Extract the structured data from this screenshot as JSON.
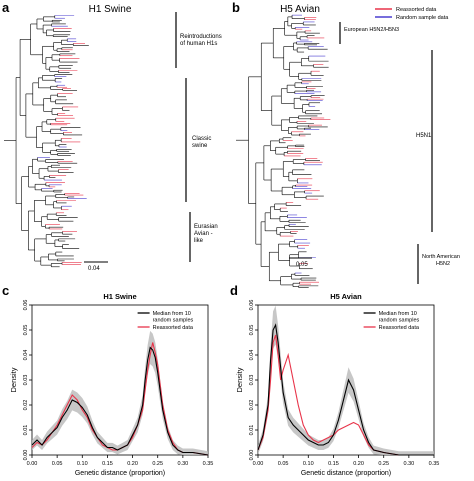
{
  "panels": {
    "a": {
      "letter": "a",
      "title": "H1 Swine",
      "clades": [
        {
          "label": "Reintroductions\nof human H1s"
        },
        {
          "label": "Classic\nswine"
        },
        {
          "label": "Eurasian\nAvian -\nlike"
        }
      ],
      "scale": "0.04"
    },
    "b": {
      "letter": "b",
      "title": "H5 Avian",
      "legend": [
        {
          "label": "Reassorted data",
          "color": "#e8344a"
        },
        {
          "label": "Random sample data",
          "color": "#4a3fd0"
        }
      ],
      "clades": [
        {
          "label": "European H5N2/H5N3"
        },
        {
          "label": "H5N1"
        },
        {
          "label": "North American\nH5N2"
        }
      ],
      "scale": "0.05"
    }
  },
  "chart_data": [
    {
      "letter": "c",
      "type": "line",
      "title": "H1 Swine",
      "xlabel": "Genetic distance (proportion)",
      "ylabel": "Density",
      "xlim": [
        0,
        0.35
      ],
      "ylim": [
        0,
        0.06
      ],
      "xticks": [
        "0.00",
        "0.05",
        "0.10",
        "0.15",
        "0.20",
        "0.25",
        "0.30",
        "0.35"
      ],
      "yticks": [
        "0.00",
        "0.01",
        "0.02",
        "0.03",
        "0.04",
        "0.05",
        "0.06"
      ],
      "legend": [
        {
          "label": "Median from 10\nrandom samples",
          "color": "#000000"
        },
        {
          "label": "Reassorted data",
          "color": "#e8344a"
        }
      ],
      "series": [
        {
          "name": "Median from 10 random samples",
          "color": "#000000",
          "x": [
            0.0,
            0.01,
            0.02,
            0.03,
            0.04,
            0.05,
            0.06,
            0.07,
            0.08,
            0.09,
            0.1,
            0.11,
            0.12,
            0.13,
            0.14,
            0.15,
            0.16,
            0.17,
            0.18,
            0.19,
            0.2,
            0.21,
            0.22,
            0.225,
            0.23,
            0.235,
            0.24,
            0.245,
            0.25,
            0.26,
            0.27,
            0.28,
            0.29,
            0.3,
            0.32,
            0.35
          ],
          "y": [
            0.004,
            0.006,
            0.004,
            0.007,
            0.009,
            0.011,
            0.015,
            0.018,
            0.022,
            0.021,
            0.019,
            0.016,
            0.011,
            0.007,
            0.005,
            0.003,
            0.003,
            0.002,
            0.003,
            0.004,
            0.008,
            0.012,
            0.02,
            0.03,
            0.038,
            0.043,
            0.042,
            0.039,
            0.033,
            0.018,
            0.009,
            0.004,
            0.002,
            0.001,
            0.001,
            0.0
          ]
        },
        {
          "name": "Reassorted data",
          "color": "#e8344a",
          "x": [
            0.0,
            0.01,
            0.02,
            0.03,
            0.04,
            0.05,
            0.06,
            0.07,
            0.08,
            0.09,
            0.1,
            0.11,
            0.12,
            0.13,
            0.14,
            0.15,
            0.16,
            0.17,
            0.18,
            0.19,
            0.2,
            0.21,
            0.22,
            0.225,
            0.23,
            0.235,
            0.24,
            0.245,
            0.25,
            0.26,
            0.27,
            0.28,
            0.29,
            0.3,
            0.32,
            0.35
          ],
          "y": [
            0.003,
            0.005,
            0.004,
            0.006,
            0.009,
            0.012,
            0.016,
            0.02,
            0.024,
            0.022,
            0.018,
            0.015,
            0.01,
            0.007,
            0.004,
            0.003,
            0.002,
            0.002,
            0.003,
            0.004,
            0.007,
            0.012,
            0.018,
            0.026,
            0.034,
            0.04,
            0.045,
            0.041,
            0.036,
            0.02,
            0.01,
            0.005,
            0.002,
            0.001,
            0.001,
            0.0
          ]
        }
      ]
    },
    {
      "letter": "d",
      "type": "line",
      "title": "H5 Avian",
      "xlabel": "Genetic distance (proportion)",
      "ylabel": "Density",
      "xlim": [
        0,
        0.35
      ],
      "ylim": [
        0,
        0.06
      ],
      "xticks": [
        "0.00",
        "0.05",
        "0.10",
        "0.15",
        "0.20",
        "0.25",
        "0.30",
        "0.35"
      ],
      "yticks": [
        "0.00",
        "0.01",
        "0.02",
        "0.03",
        "0.04",
        "0.05",
        "0.06"
      ],
      "legend": [
        {
          "label": "Median from 10\nrandom samples",
          "color": "#000000"
        },
        {
          "label": "Reassorted data",
          "color": "#e8344a"
        }
      ],
      "series": [
        {
          "name": "Median from 10 random samples",
          "color": "#000000",
          "x": [
            0.0,
            0.01,
            0.02,
            0.025,
            0.03,
            0.035,
            0.04,
            0.045,
            0.05,
            0.06,
            0.07,
            0.08,
            0.09,
            0.1,
            0.11,
            0.12,
            0.13,
            0.14,
            0.15,
            0.16,
            0.17,
            0.18,
            0.19,
            0.2,
            0.21,
            0.22,
            0.23,
            0.25,
            0.28,
            0.35
          ],
          "y": [
            0.002,
            0.008,
            0.02,
            0.038,
            0.05,
            0.052,
            0.045,
            0.035,
            0.025,
            0.015,
            0.012,
            0.01,
            0.008,
            0.006,
            0.005,
            0.004,
            0.004,
            0.005,
            0.008,
            0.014,
            0.022,
            0.03,
            0.026,
            0.018,
            0.01,
            0.005,
            0.002,
            0.001,
            0.0,
            0.0
          ]
        },
        {
          "name": "Reassorted data",
          "color": "#e8344a",
          "x": [
            0.0,
            0.01,
            0.02,
            0.025,
            0.03,
            0.035,
            0.04,
            0.045,
            0.05,
            0.06,
            0.07,
            0.08,
            0.09,
            0.1,
            0.11,
            0.12,
            0.13,
            0.14,
            0.15,
            0.16,
            0.17,
            0.18,
            0.19,
            0.2,
            0.21,
            0.22,
            0.23,
            0.25,
            0.28,
            0.35
          ],
          "y": [
            0.002,
            0.007,
            0.018,
            0.03,
            0.045,
            0.048,
            0.04,
            0.03,
            0.034,
            0.04,
            0.03,
            0.02,
            0.012,
            0.008,
            0.006,
            0.005,
            0.006,
            0.007,
            0.008,
            0.01,
            0.011,
            0.012,
            0.013,
            0.012,
            0.008,
            0.004,
            0.002,
            0.001,
            0.0,
            0.0
          ]
        }
      ]
    }
  ]
}
